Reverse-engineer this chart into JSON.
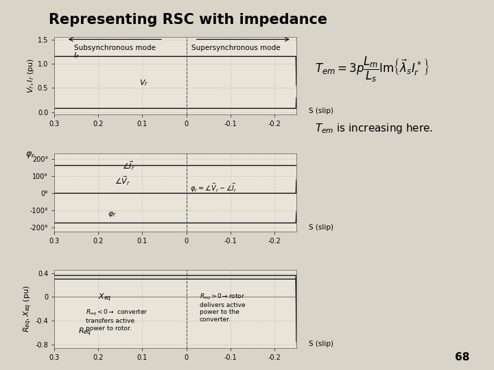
{
  "title": "Representing RSC with impedance",
  "background_color": "#d8d4c8",
  "plot_bg_color": "#e8e4d8",
  "slip_ticks": [
    0.3,
    0.2,
    0.1,
    0,
    -0.1,
    -0.2
  ],
  "slip_label": "S (slip)",
  "panel1_ylabel": "$V_r, I_r$ (pu)",
  "panel1_ylim": [
    -0.05,
    1.55
  ],
  "panel1_yticks": [
    0.0,
    0.5,
    1.0,
    1.5
  ],
  "panel2_yticks": [
    -200,
    -100,
    0,
    100,
    200
  ],
  "panel2_ylim": [
    -220,
    230
  ],
  "panel3_ylabel": "$R_{eq}, X_{eq}$ (pu)",
  "panel3_ylim": [
    -0.85,
    0.45
  ],
  "panel3_yticks": [
    -0.8,
    -0.4,
    0,
    0.4
  ],
  "subsync_label": "Subsynchronous mode",
  "supersync_label": "Supersynchronous mode",
  "line_color": "#111111",
  "grid_color": "#aaaaaa",
  "page_number": "68"
}
